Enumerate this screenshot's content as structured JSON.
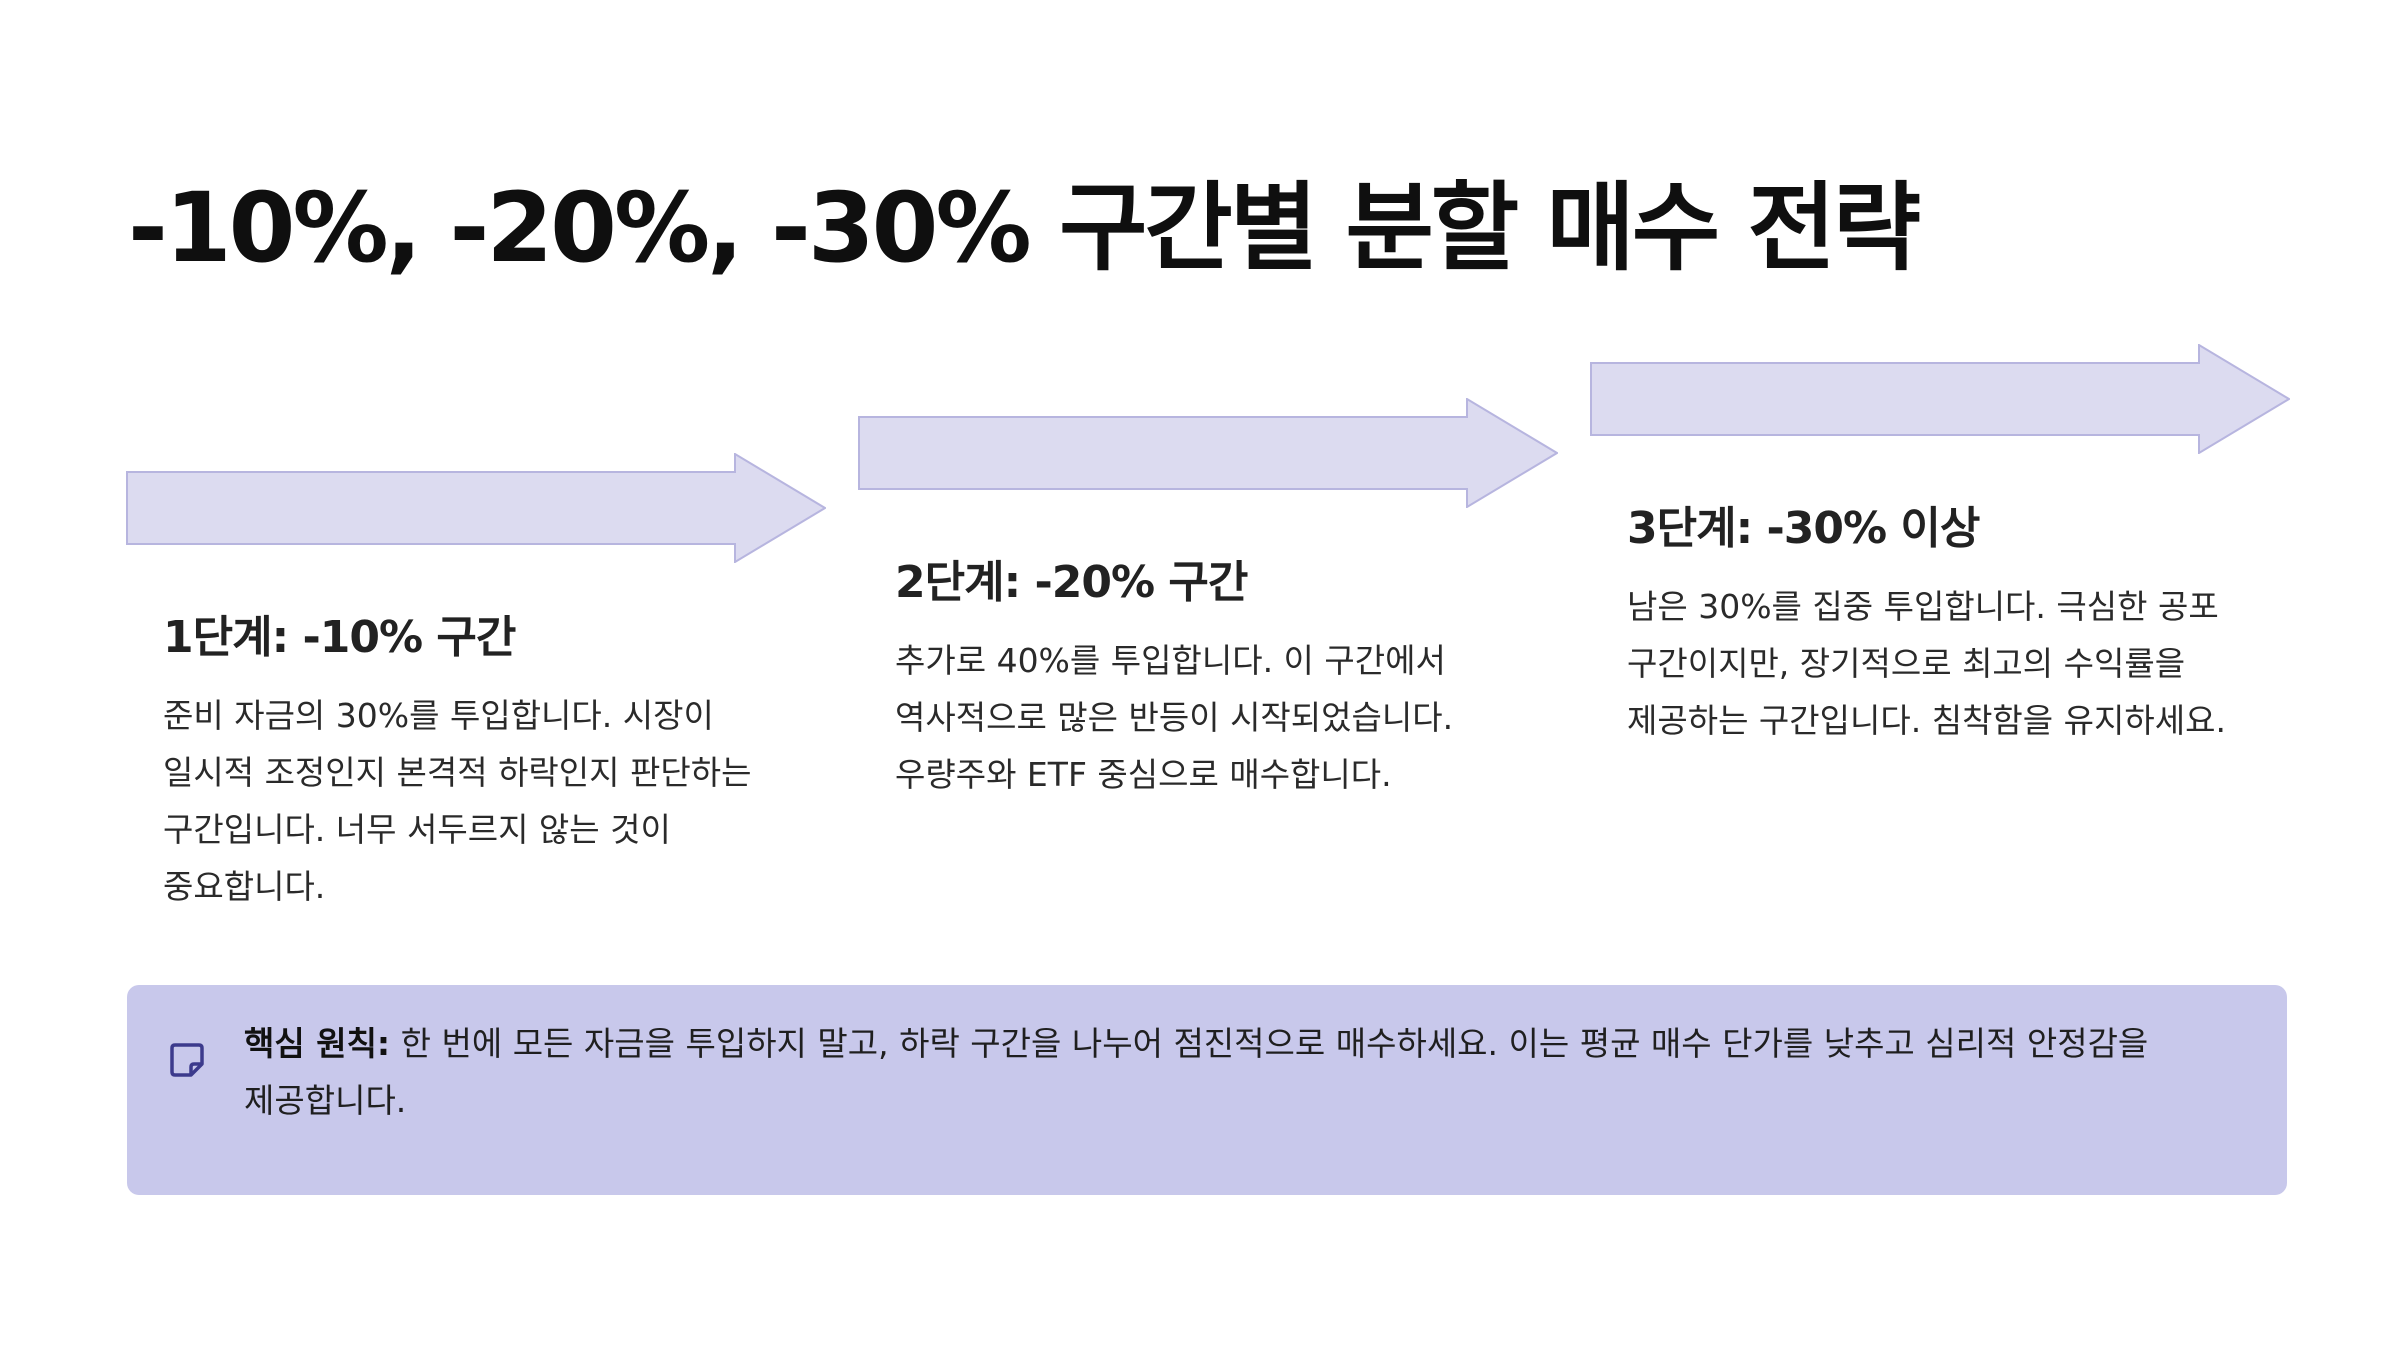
{
  "title": "-10%, -20%, -30% 구간별 분할 매수 전략",
  "steps": [
    {
      "heading": "1단계: -10% 구간",
      "body": "준비 자금의 30%를 투입합니다. 시장이 일시적 조정인지 본격적 하락인지 판단하는 구간입니다. 너무 서두르지 않는 것이 중요합니다."
    },
    {
      "heading": "2단계: -20% 구간",
      "body": "추가로 40%를 투입합니다. 이 구간에서 역사적으로 많은 반등이 시작되었습니다. 우량주와 ETF 중심으로 매수합니다."
    },
    {
      "heading": "3단계: -30% 이상",
      "body": "남은 30%를 집중 투입합니다. 극심한 공포 구간이지만, 장기적으로 최고의 수익률을 제공하는 구간입니다. 침착함을 유지하세요."
    }
  ],
  "callout": {
    "icon": "note-icon",
    "label": "핵심 원칙:",
    "text": " 한 번에 모든 자금을 투입하지 말고, 하락 구간을 나누어 점진적으로 매수하세요. 이는 평균 매수 단가를 낮추고 심리적 안정감을 제공합니다."
  },
  "colors": {
    "arrow_fill": "#dcdbf0",
    "arrow_stroke": "#b7b5df",
    "callout_bg": "#c8c8eb",
    "icon": "#3c3a8c"
  }
}
